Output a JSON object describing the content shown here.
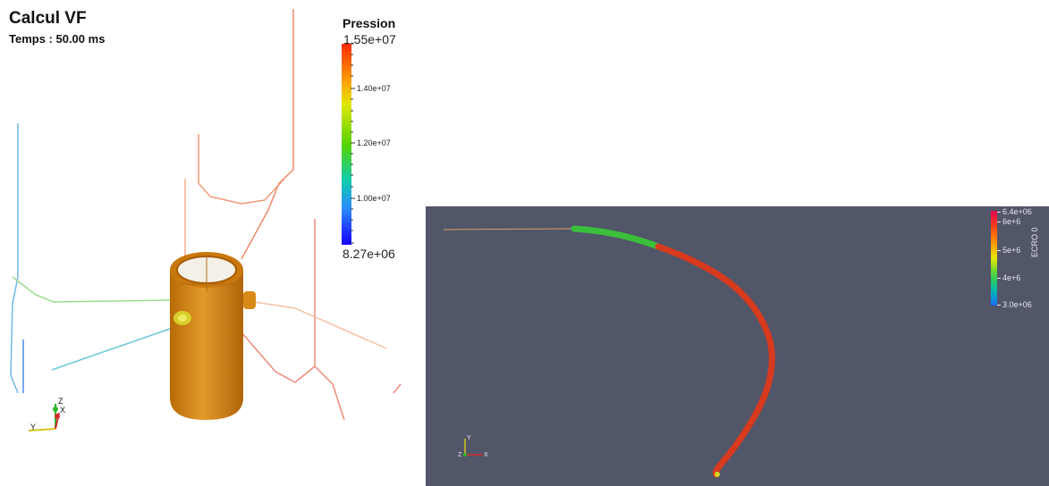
{
  "left_view": {
    "title": "Calcul VF",
    "subtitle": "Temps : 50.00 ms",
    "legend": {
      "title": "Pression",
      "max_label": "1.55e+07",
      "min_label": "8.27e+06",
      "tick_labels": [
        "1.40e+07",
        "1.20e+07",
        "1.00e+07"
      ],
      "colors": {
        "high": "#ff2a00",
        "mid": "#55d400",
        "low": "#1400ff"
      }
    },
    "object_color": "#d98a16",
    "axes": {
      "z": "Z",
      "y": "Y",
      "x": "X"
    }
  },
  "right_view": {
    "background": "#525669",
    "legend": {
      "title": "ECRO 0",
      "labels": [
        "6.4e+06",
        "6e+6",
        "5e+6",
        "4e+6",
        "3.0e+06"
      ]
    },
    "axes": {
      "y": "Y",
      "z": "Z",
      "x": "X"
    }
  }
}
